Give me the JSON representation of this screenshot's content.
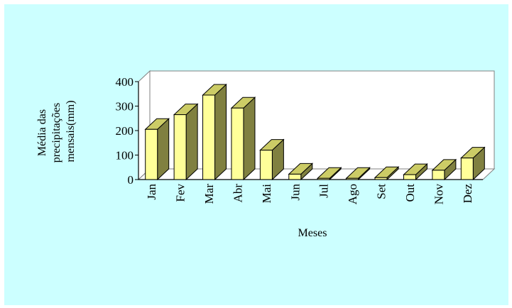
{
  "chart_data": {
    "type": "bar",
    "title": "",
    "xlabel": "Meses",
    "ylabel_lines": [
      "Média das",
      "precipitações",
      "mensais(mm)"
    ],
    "categories": [
      "Jan",
      "Fev",
      "Mar",
      "Abr",
      "Mai",
      "Jun",
      "Jul",
      "Ago",
      "Set",
      "Out",
      "Nov",
      "Dez"
    ],
    "values": [
      205,
      265,
      345,
      292,
      120,
      22,
      5,
      5,
      8,
      20,
      38,
      88
    ],
    "ylim": [
      0,
      400
    ],
    "yticks": [
      0,
      100,
      200,
      300,
      400
    ],
    "grid": false,
    "legend": "none",
    "colors": {
      "background": "#ccffff",
      "plot_wall": "#ffffff",
      "bar_front": "#ffff99",
      "bar_top": "#cccc66",
      "bar_side": "#808040",
      "stroke": "#000000"
    }
  }
}
